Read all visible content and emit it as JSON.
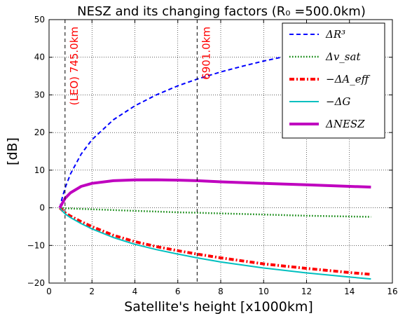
{
  "chart_data": {
    "type": "line",
    "title": "NESZ and its changing factors (R₀ =500.0km)",
    "xlabel": "Satellite's height [x1000km]",
    "ylabel": "[dB]",
    "xlim": [
      0,
      16
    ],
    "ylim": [
      -20,
      50
    ],
    "xticks": [
      0,
      2,
      4,
      6,
      8,
      10,
      12,
      14,
      16
    ],
    "yticks": [
      -20,
      -10,
      0,
      10,
      20,
      30,
      40,
      50
    ],
    "grid": true,
    "legend_position": "top-right",
    "vlines": [
      {
        "x": 0.745,
        "label": "(LEO) 745.0km"
      },
      {
        "x": 6.901,
        "label": "6901.0km"
      }
    ],
    "series": [
      {
        "name": "ΔR³",
        "color": "#0000ff",
        "style": "dashed",
        "x": [
          0.5,
          0.6,
          0.745,
          1.0,
          1.5,
          2.0,
          3.0,
          4.0,
          5.0,
          6.0,
          6.901,
          8.0,
          9.0,
          10.0,
          11.0
        ],
        "y": [
          0,
          2.4,
          5.2,
          9.0,
          14.3,
          18.1,
          23.4,
          27.1,
          30.0,
          32.4,
          34.2,
          36.1,
          37.6,
          39.0,
          40.2
        ]
      },
      {
        "name": "Δv_sat",
        "color": "#008000",
        "style": "dotted",
        "x": [
          0.5,
          1.0,
          2.0,
          4.0,
          6.0,
          6.901,
          8.0,
          10.0,
          12.0,
          15.0
        ],
        "y": [
          0,
          -0.2,
          -0.4,
          -0.8,
          -1.2,
          -1.3,
          -1.5,
          -1.8,
          -2.1,
          -2.4
        ]
      },
      {
        "name": "−ΔA_eff",
        "color": "#ff0000",
        "style": "dashdot",
        "x": [
          0.5,
          0.745,
          1.0,
          1.5,
          2.0,
          3.0,
          4.0,
          5.0,
          6.0,
          6.901,
          8.0,
          10.0,
          12.0,
          14.0,
          15.0
        ],
        "y": [
          0,
          -1.3,
          -2.2,
          -3.7,
          -5.0,
          -7.3,
          -9.0,
          -10.3,
          -11.4,
          -12.3,
          -13.3,
          -14.9,
          -16.1,
          -17.2,
          -17.7
        ]
      },
      {
        "name": "−ΔG",
        "color": "#00bfbf",
        "style": "solid",
        "x": [
          0.5,
          0.745,
          1.0,
          1.5,
          2.0,
          3.0,
          4.0,
          5.0,
          6.0,
          6.901,
          8.0,
          10.0,
          12.0,
          14.0,
          15.0
        ],
        "y": [
          0,
          -1.6,
          -2.6,
          -4.2,
          -5.6,
          -7.9,
          -9.7,
          -11.1,
          -12.3,
          -13.3,
          -14.4,
          -16.0,
          -17.3,
          -18.4,
          -18.9
        ]
      },
      {
        "name": "ΔNESZ",
        "color": "#bf00bf",
        "style": "thick",
        "x": [
          0.5,
          0.745,
          1.0,
          1.5,
          2.0,
          3.0,
          4.0,
          5.0,
          6.0,
          6.901,
          8.0,
          10.0,
          12.0,
          14.0,
          15.0
        ],
        "y": [
          0,
          2.5,
          4.0,
          5.7,
          6.5,
          7.2,
          7.4,
          7.45,
          7.35,
          7.2,
          6.9,
          6.5,
          6.1,
          5.7,
          5.5
        ]
      }
    ]
  }
}
